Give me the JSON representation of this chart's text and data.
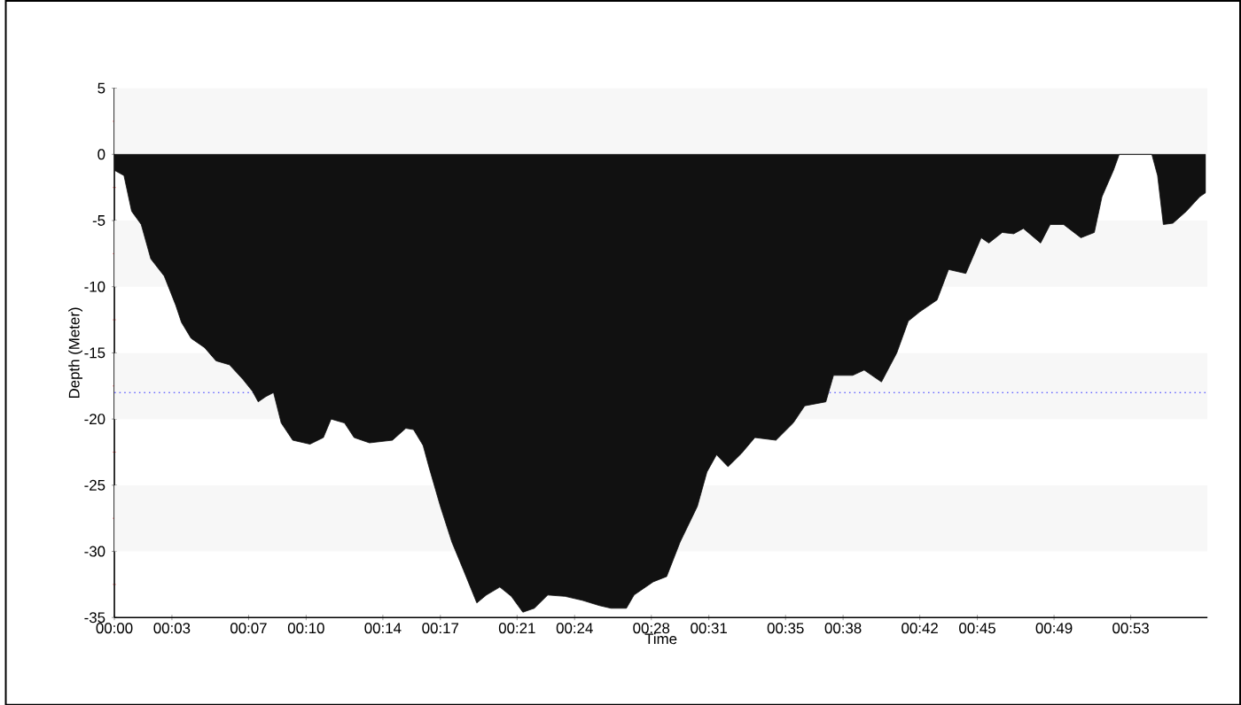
{
  "chart_data": {
    "type": "area",
    "xlabel": "Time",
    "ylabel": "Depth (Meter)",
    "x": [
      0,
      0.5,
      0.9,
      1.4,
      1.9,
      2.6,
      3.2,
      3.5,
      4.0,
      4.7,
      5.3,
      6.0,
      6.7,
      7.2,
      7.5,
      7.9,
      8.3,
      8.7,
      9.3,
      10.2,
      10.9,
      11.3,
      12.0,
      12.5,
      13.3,
      14.5,
      15.2,
      15.6,
      16.1,
      16.4,
      17.0,
      17.6,
      18.2,
      18.9,
      19.4,
      20.1,
      20.7,
      21.3,
      21.9,
      22.6,
      23.5,
      24.4,
      25.3,
      25.9,
      26.7,
      27.1,
      28.1,
      28.8,
      29.5,
      30.4,
      30.9,
      31.4,
      32.0,
      32.7,
      33.4,
      34.5,
      35.4,
      36.0,
      37.1,
      37.5,
      38.5,
      39.1,
      40.0,
      40.8,
      41.4,
      42.0,
      42.9,
      43.5,
      44.4,
      45.2,
      45.6,
      46.3,
      46.9,
      47.4,
      48.3,
      48.8,
      49.5,
      50.4,
      51.1,
      51.5,
      52.1,
      52.4,
      54.1,
      54.4,
      54.7,
      55.2,
      55.9,
      56.6,
      56.9
    ],
    "values": [
      -1.2,
      -1.6,
      -4.3,
      -5.3,
      -7.9,
      -9.2,
      -11.4,
      -12.7,
      -13.9,
      -14.6,
      -15.6,
      -15.9,
      -17.0,
      -17.9,
      -18.7,
      -18.3,
      -18.0,
      -20.3,
      -21.6,
      -21.9,
      -21.4,
      -20.0,
      -20.3,
      -21.4,
      -21.8,
      -21.6,
      -20.7,
      -20.8,
      -22.0,
      -23.6,
      -26.6,
      -29.3,
      -31.4,
      -33.9,
      -33.3,
      -32.7,
      -33.4,
      -34.6,
      -34.3,
      -33.3,
      -33.4,
      -33.7,
      -34.1,
      -34.3,
      -34.3,
      -33.3,
      -32.3,
      -31.9,
      -29.3,
      -26.6,
      -24.0,
      -22.7,
      -23.6,
      -22.6,
      -21.4,
      -21.6,
      -20.3,
      -19.0,
      -18.7,
      -16.7,
      -16.7,
      -16.3,
      -17.2,
      -15.0,
      -12.6,
      -11.9,
      -11.0,
      -8.7,
      -9.0,
      -6.3,
      -6.7,
      -5.9,
      -6.0,
      -5.6,
      -6.7,
      -5.3,
      -5.3,
      -6.3,
      -5.9,
      -3.2,
      -1.2,
      0,
      0,
      -1.6,
      -5.3,
      -5.2,
      -4.3,
      -3.2,
      -2.9
    ],
    "color": "#111111",
    "xlim": [
      0,
      57
    ],
    "ylim": [
      -35,
      5
    ],
    "xticks": [
      {
        "value": 0,
        "label": "00:00"
      },
      {
        "value": 3,
        "label": "00:03"
      },
      {
        "value": 7,
        "label": "00:07"
      },
      {
        "value": 10,
        "label": "00:10"
      },
      {
        "value": 14,
        "label": "00:14"
      },
      {
        "value": 17,
        "label": "00:17"
      },
      {
        "value": 21,
        "label": "00:21"
      },
      {
        "value": 24,
        "label": "00:24"
      },
      {
        "value": 28,
        "label": "00:28"
      },
      {
        "value": 31,
        "label": "00:31"
      },
      {
        "value": 35,
        "label": "00:35"
      },
      {
        "value": 38,
        "label": "00:38"
      },
      {
        "value": 42,
        "label": "00:42"
      },
      {
        "value": 45,
        "label": "00:45"
      },
      {
        "value": 49,
        "label": "00:49"
      },
      {
        "value": 53,
        "label": "00:53"
      }
    ],
    "yticks": [
      5,
      0,
      -5,
      -10,
      -15,
      -20,
      -25,
      -30,
      -35
    ],
    "bands": [
      {
        "axis": "y",
        "from": 0,
        "to": 5,
        "color": "#f7f7f7"
      },
      {
        "axis": "y",
        "from": -10,
        "to": -5,
        "color": "#f7f7f7"
      },
      {
        "axis": "y",
        "from": -20,
        "to": -15,
        "color": "#f7f7f7"
      },
      {
        "axis": "y",
        "from": -30,
        "to": -25,
        "color": "#f7f7f7"
      }
    ],
    "ref_lines": [
      {
        "axis": "y",
        "value": -18,
        "color": "#6666ff",
        "line_style": "dotted"
      }
    ]
  }
}
